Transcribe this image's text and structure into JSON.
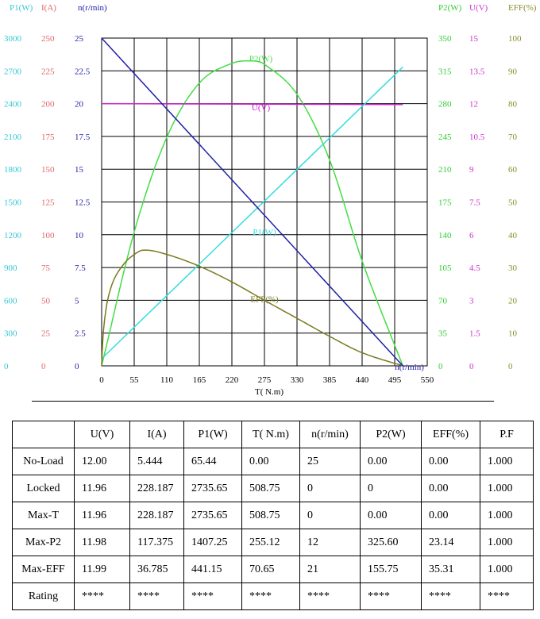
{
  "chart_data": {
    "type": "line",
    "x": {
      "label": "T( N.m)",
      "ticks": [
        "0",
        "55",
        "110",
        "165",
        "220",
        "275",
        "330",
        "385",
        "440",
        "495",
        "550"
      ],
      "range": [
        0,
        550
      ]
    },
    "left_axes": [
      {
        "title": "P1(W)",
        "color": "#33c7d4",
        "ticks": [
          "0",
          "300",
          "600",
          "900",
          "1200",
          "1500",
          "1800",
          "2100",
          "2400",
          "2700",
          "3000"
        ]
      },
      {
        "title": "I(A)",
        "color": "#e06666",
        "ticks": [
          "0",
          "25",
          "50",
          "75",
          "100",
          "125",
          "150",
          "175",
          "200",
          "225",
          "250"
        ]
      },
      {
        "title": "n(r/min)",
        "color": "#1f1fa8",
        "ticks": [
          "0",
          "2.5",
          "5",
          "7.5",
          "10",
          "12.5",
          "15",
          "17.5",
          "20",
          "22.5",
          "25"
        ]
      }
    ],
    "right_axes": [
      {
        "title": "P2(W)",
        "color": "#33cc33",
        "ticks": [
          "0",
          "35",
          "70",
          "105",
          "140",
          "175",
          "210",
          "245",
          "280",
          "315",
          "350"
        ]
      },
      {
        "title": "U(V)",
        "color": "#cc33cc",
        "ticks": [
          "0",
          "1.5",
          "3",
          "4.5",
          "6",
          "7.5",
          "9",
          "10.5",
          "12",
          "13.5",
          "15"
        ]
      },
      {
        "title": "EFF(%)",
        "color": "#8c8c2a",
        "ticks": [
          "0",
          "10",
          "20",
          "30",
          "40",
          "50",
          "60",
          "70",
          "80",
          "90",
          "100"
        ]
      }
    ],
    "series": [
      {
        "name": "P2(W)",
        "color": "#44dd44",
        "ymax": 350,
        "label_at": [
          269,
          325
        ],
        "points": [
          [
            0,
            0
          ],
          [
            55,
            143
          ],
          [
            110,
            244
          ],
          [
            165,
            302
          ],
          [
            220,
            323
          ],
          [
            255,
            325.6
          ],
          [
            275,
            322
          ],
          [
            330,
            290
          ],
          [
            385,
            220
          ],
          [
            440,
            112
          ],
          [
            508.75,
            0
          ]
        ]
      },
      {
        "name": "U(V)",
        "color": "#cc22cc",
        "ymax": 15,
        "label_at": [
          269,
          11.7
        ],
        "points": [
          [
            0,
            12.0
          ],
          [
            508.75,
            11.96
          ]
        ]
      },
      {
        "name": "P1(W)",
        "color": "#33dddd",
        "ymax": 3000,
        "label_at": [
          275,
          1200
        ],
        "points": [
          [
            0,
            65.44
          ],
          [
            508.75,
            2735.65
          ]
        ]
      },
      {
        "name": "EFF(%)",
        "color": "#7a7a1e",
        "ymax": 100,
        "label_at": [
          275,
          19.5
        ],
        "points": [
          [
            0,
            0
          ],
          [
            2,
            8
          ],
          [
            5,
            14
          ],
          [
            10,
            20
          ],
          [
            20,
            26
          ],
          [
            35,
            30.5
          ],
          [
            50,
            33.3
          ],
          [
            70.65,
            35.31
          ],
          [
            110,
            34
          ],
          [
            165,
            30.4
          ],
          [
            220,
            25.6
          ],
          [
            275,
            20
          ],
          [
            330,
            14.5
          ],
          [
            385,
            9
          ],
          [
            440,
            4
          ],
          [
            508.75,
            0
          ]
        ]
      },
      {
        "name": "n(r/min)",
        "color": "#1f1fa8",
        "ymax": 25,
        "label_at": [
          520,
          -0.3
        ],
        "points": [
          [
            0,
            25
          ],
          [
            508.75,
            0
          ]
        ]
      }
    ]
  },
  "table": {
    "headers": [
      "",
      "U(V)",
      "I(A)",
      "P1(W)",
      "T( N.m)",
      "n(r/min)",
      "P2(W)",
      "EFF(%)",
      "P.F"
    ],
    "rows": [
      [
        "No-Load",
        "12.00",
        "5.444",
        "65.44",
        "0.00",
        "25",
        "0.00",
        "0.00",
        "1.000"
      ],
      [
        "Locked",
        "11.96",
        "228.187",
        "2735.65",
        "508.75",
        "0",
        "0",
        "0.00",
        "1.000"
      ],
      [
        "Max-T",
        "11.96",
        "228.187",
        "2735.65",
        "508.75",
        "0",
        "0.00",
        "0.00",
        "1.000"
      ],
      [
        "Max-P2",
        "11.98",
        "117.375",
        "1407.25",
        "255.12",
        "12",
        "325.60",
        "23.14",
        "1.000"
      ],
      [
        "Max-EFF",
        "11.99",
        "36.785",
        "441.15",
        "70.65",
        "21",
        "155.75",
        "35.31",
        "1.000"
      ],
      [
        "Rating",
        "****",
        "****",
        "****",
        "****",
        "****",
        "****",
        "****",
        "****"
      ]
    ]
  }
}
